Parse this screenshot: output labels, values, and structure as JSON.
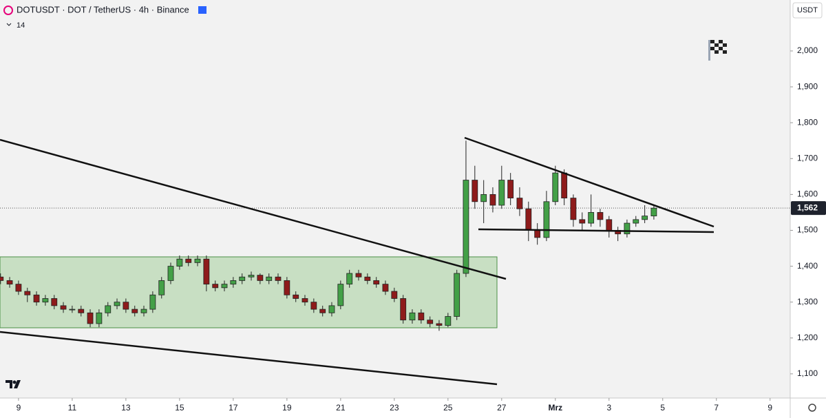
{
  "chart_data": {
    "type": "candlestick",
    "title": "DOTUSDT · DOT / TetherUS · 4h · Binance",
    "subtitle": "14",
    "currency": "USDT",
    "up_color": "#43a047",
    "down_color": "#8e1b1b",
    "xlim": [
      8.31,
      37.75
    ],
    "xticks": [
      9,
      11,
      13,
      15,
      17,
      19,
      21,
      23,
      25,
      27,
      {
        "value": 29,
        "label": "Mrz"
      },
      {
        "value": 31,
        "label": "3"
      },
      {
        "value": 33,
        "label": "5"
      },
      {
        "value": 35,
        "label": "7"
      },
      {
        "value": 37,
        "label": "9"
      }
    ],
    "ylim": [
      1.0326,
      2.142
    ],
    "yticks": [
      {
        "value": 1.1,
        "label": "1,100"
      },
      {
        "value": 1.2,
        "label": "1,200"
      },
      {
        "value": 1.3,
        "label": "1,300"
      },
      {
        "value": 1.4,
        "label": "1,400"
      },
      {
        "value": 1.5,
        "label": "1,500"
      },
      {
        "value": 1.6,
        "label": "1,600"
      },
      {
        "value": 1.7,
        "label": "1,700"
      },
      {
        "value": 1.8,
        "label": "1,800"
      },
      {
        "value": 1.9,
        "label": "1,900"
      },
      {
        "value": 2.0,
        "label": "2,000"
      }
    ],
    "last_price": {
      "value": 1.562,
      "label": "1,562"
    },
    "x": [
      8.33,
      8.67,
      9,
      9.33,
      9.67,
      10,
      10.33,
      10.67,
      11,
      11.33,
      11.67,
      12,
      12.33,
      12.67,
      13,
      13.33,
      13.67,
      14,
      14.33,
      14.67,
      15,
      15.33,
      15.67,
      16,
      16.33,
      16.67,
      17,
      17.33,
      17.67,
      18,
      18.33,
      18.67,
      19,
      19.33,
      19.67,
      20,
      20.33,
      20.67,
      21,
      21.33,
      21.67,
      22,
      22.33,
      22.67,
      23,
      23.33,
      23.67,
      24,
      24.33,
      24.67,
      25,
      25.33,
      25.67,
      26,
      26.33,
      26.67,
      27,
      27.33,
      27.67,
      28,
      28.33,
      28.67,
      29,
      29.33,
      29.67,
      30,
      30.33,
      30.67,
      31,
      31.33,
      31.67,
      32,
      32.33,
      32.67
    ],
    "open": [
      1.37,
      1.36,
      1.35,
      1.33,
      1.32,
      1.3,
      1.31,
      1.29,
      1.28,
      1.28,
      1.27,
      1.24,
      1.27,
      1.29,
      1.3,
      1.28,
      1.27,
      1.28,
      1.32,
      1.36,
      1.4,
      1.42,
      1.41,
      1.42,
      1.35,
      1.34,
      1.35,
      1.36,
      1.37,
      1.375,
      1.36,
      1.37,
      1.36,
      1.32,
      1.31,
      1.3,
      1.28,
      1.27,
      1.29,
      1.35,
      1.38,
      1.37,
      1.36,
      1.35,
      1.33,
      1.31,
      1.25,
      1.27,
      1.25,
      1.24,
      1.235,
      1.26,
      1.38,
      1.64,
      1.58,
      1.6,
      1.57,
      1.64,
      1.59,
      1.56,
      1.5,
      1.48,
      1.58,
      1.66,
      1.59,
      1.53,
      1.52,
      1.55,
      1.53,
      1.5,
      1.49,
      1.52,
      1.53,
      1.54
    ],
    "high": [
      1.38,
      1.37,
      1.36,
      1.34,
      1.33,
      1.32,
      1.32,
      1.3,
      1.29,
      1.29,
      1.28,
      1.28,
      1.3,
      1.31,
      1.31,
      1.29,
      1.29,
      1.33,
      1.37,
      1.41,
      1.43,
      1.43,
      1.43,
      1.43,
      1.36,
      1.36,
      1.37,
      1.38,
      1.385,
      1.38,
      1.38,
      1.38,
      1.37,
      1.33,
      1.32,
      1.31,
      1.29,
      1.3,
      1.36,
      1.39,
      1.39,
      1.38,
      1.37,
      1.36,
      1.34,
      1.32,
      1.28,
      1.28,
      1.26,
      1.25,
      1.27,
      1.39,
      1.75,
      1.68,
      1.64,
      1.62,
      1.68,
      1.66,
      1.62,
      1.58,
      1.52,
      1.61,
      1.68,
      1.67,
      1.6,
      1.55,
      1.6,
      1.56,
      1.54,
      1.51,
      1.53,
      1.54,
      1.57,
      1.57
    ],
    "low": [
      1.35,
      1.34,
      1.32,
      1.3,
      1.29,
      1.29,
      1.28,
      1.27,
      1.27,
      1.26,
      1.23,
      1.23,
      1.26,
      1.28,
      1.27,
      1.26,
      1.26,
      1.27,
      1.31,
      1.35,
      1.39,
      1.4,
      1.4,
      1.33,
      1.33,
      1.33,
      1.34,
      1.35,
      1.36,
      1.35,
      1.35,
      1.35,
      1.31,
      1.3,
      1.29,
      1.27,
      1.26,
      1.26,
      1.28,
      1.34,
      1.36,
      1.35,
      1.34,
      1.32,
      1.3,
      1.24,
      1.24,
      1.24,
      1.23,
      1.22,
      1.23,
      1.25,
      1.37,
      1.56,
      1.52,
      1.55,
      1.56,
      1.57,
      1.54,
      1.47,
      1.46,
      1.47,
      1.57,
      1.57,
      1.51,
      1.5,
      1.51,
      1.51,
      1.48,
      1.47,
      1.48,
      1.51,
      1.52,
      1.53
    ],
    "close": [
      1.36,
      1.35,
      1.33,
      1.32,
      1.3,
      1.31,
      1.29,
      1.28,
      1.28,
      1.27,
      1.24,
      1.27,
      1.29,
      1.3,
      1.28,
      1.27,
      1.28,
      1.32,
      1.36,
      1.4,
      1.42,
      1.41,
      1.42,
      1.35,
      1.34,
      1.35,
      1.36,
      1.37,
      1.375,
      1.36,
      1.37,
      1.36,
      1.32,
      1.31,
      1.3,
      1.28,
      1.27,
      1.29,
      1.35,
      1.38,
      1.37,
      1.36,
      1.35,
      1.33,
      1.31,
      1.25,
      1.27,
      1.25,
      1.24,
      1.235,
      1.26,
      1.38,
      1.64,
      1.58,
      1.6,
      1.57,
      1.64,
      1.59,
      1.56,
      1.5,
      1.48,
      1.58,
      1.66,
      1.59,
      1.53,
      1.52,
      1.55,
      1.53,
      1.5,
      1.49,
      1.52,
      1.53,
      1.54,
      1.562
    ]
  }
}
